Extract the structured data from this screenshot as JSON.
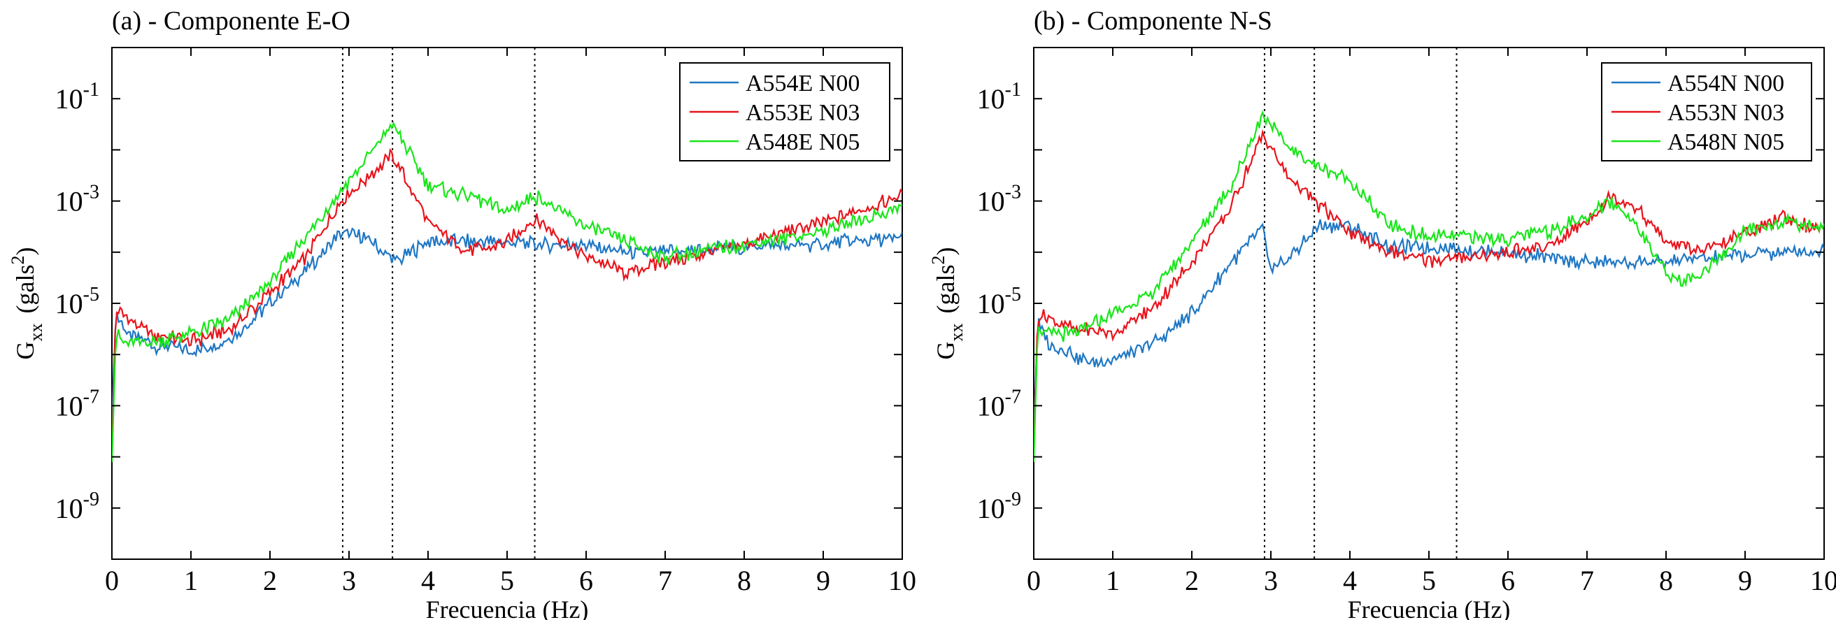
{
  "colors": {
    "series": [
      "#1f77c4",
      "#e8141c",
      "#19e619"
    ],
    "axis": "#000000",
    "refline": "#000000"
  },
  "chart_data": [
    {
      "type": "line",
      "title": "(a) - Componente E-O",
      "xlabel": "Frecuencia (Hz)",
      "ylabel_main": "G",
      "ylabel_sub": "xx",
      "ylabel_unit": "(gals",
      "ylabel_sup": "2",
      "ylabel_close": ")",
      "yscale": "log",
      "xlim": [
        0,
        10
      ],
      "ylim_exp": [
        -10,
        0
      ],
      "xticks": [
        "0",
        "1",
        "2",
        "3",
        "4",
        "5",
        "6",
        "7",
        "8",
        "9",
        "10"
      ],
      "yticks": [
        {
          "base": "10",
          "exp": "-9"
        },
        {
          "base": "10",
          "exp": "-7"
        },
        {
          "base": "10",
          "exp": "-5"
        },
        {
          "base": "10",
          "exp": "-3"
        },
        {
          "base": "10",
          "exp": "-1"
        }
      ],
      "ref_lines_hz": [
        2.92,
        3.55,
        5.35
      ],
      "legend_position": "top-right",
      "series": [
        {
          "name": "A554E N00",
          "log10_x": [
            0,
            0.05,
            0.2,
            0.5,
            1.0,
            1.5,
            2.0,
            2.5,
            2.9,
            3.2,
            3.6,
            4.0,
            4.5,
            5.0,
            5.35,
            6.0,
            6.5,
            7.0,
            8.0,
            9.0,
            10.0
          ],
          "log10_y": [
            -7.3,
            -5.2,
            -5.6,
            -5.8,
            -5.95,
            -5.7,
            -5.0,
            -4.3,
            -3.6,
            -3.7,
            -4.2,
            -3.8,
            -3.8,
            -3.8,
            -3.85,
            -3.85,
            -4.0,
            -4.0,
            -3.9,
            -3.85,
            -3.7
          ]
        },
        {
          "name": "A553E N03",
          "log10_x": [
            0,
            0.05,
            0.2,
            0.5,
            1.0,
            1.5,
            2.0,
            2.5,
            2.9,
            3.2,
            3.55,
            4.0,
            4.5,
            5.0,
            5.35,
            6.0,
            6.5,
            7.0,
            8.0,
            9.0,
            10.0
          ],
          "log10_y": [
            -7.9,
            -5.1,
            -5.3,
            -5.6,
            -5.75,
            -5.5,
            -4.8,
            -4.0,
            -3.0,
            -2.6,
            -2.1,
            -3.4,
            -4.0,
            -3.8,
            -3.35,
            -4.1,
            -4.4,
            -4.2,
            -3.85,
            -3.4,
            -2.9
          ]
        },
        {
          "name": "A548E N05",
          "log10_x": [
            0,
            0.05,
            0.2,
            0.5,
            1.0,
            1.5,
            2.0,
            2.5,
            2.9,
            3.2,
            3.55,
            4.0,
            4.5,
            5.0,
            5.35,
            6.0,
            6.5,
            7.0,
            8.0,
            9.0,
            10.0
          ],
          "log10_y": [
            -8.1,
            -5.6,
            -5.8,
            -5.75,
            -5.6,
            -5.3,
            -4.6,
            -3.6,
            -2.8,
            -2.2,
            -1.5,
            -2.7,
            -2.9,
            -3.2,
            -2.9,
            -3.5,
            -3.8,
            -4.1,
            -3.85,
            -3.6,
            -3.1
          ]
        }
      ]
    },
    {
      "type": "line",
      "title": "(b) - Componente N-S",
      "xlabel": "Frecuencia (Hz)",
      "ylabel_main": "G",
      "ylabel_sub": "xx",
      "ylabel_unit": "(gals",
      "ylabel_sup": "2",
      "ylabel_close": ")",
      "yscale": "log",
      "xlim": [
        0,
        10
      ],
      "ylim_exp": [
        -10,
        0
      ],
      "xticks": [
        "0",
        "1",
        "2",
        "3",
        "4",
        "5",
        "6",
        "7",
        "8",
        "9",
        "10"
      ],
      "yticks": [
        {
          "base": "10",
          "exp": "-9"
        },
        {
          "base": "10",
          "exp": "-7"
        },
        {
          "base": "10",
          "exp": "-5"
        },
        {
          "base": "10",
          "exp": "-3"
        },
        {
          "base": "10",
          "exp": "-1"
        }
      ],
      "ref_lines_hz": [
        2.92,
        3.55,
        5.35
      ],
      "legend_position": "top-right",
      "series": [
        {
          "name": "A554N N00",
          "log10_x": [
            0,
            0.05,
            0.2,
            0.5,
            0.75,
            1.0,
            1.5,
            2.0,
            2.5,
            2.9,
            3.0,
            3.3,
            3.6,
            4.0,
            4.5,
            5.0,
            5.5,
            6.0,
            6.5,
            7.0,
            8.0,
            9.0,
            10.0
          ],
          "log10_y": [
            -7.5,
            -5.4,
            -5.8,
            -6.0,
            -6.2,
            -6.1,
            -5.8,
            -5.2,
            -4.2,
            -3.5,
            -4.4,
            -4.0,
            -3.5,
            -3.5,
            -3.9,
            -3.9,
            -3.95,
            -4.0,
            -4.1,
            -4.2,
            -4.2,
            -4.05,
            -3.95
          ]
        },
        {
          "name": "A553N N03",
          "log10_x": [
            0,
            0.05,
            0.2,
            0.5,
            1.0,
            1.5,
            2.0,
            2.5,
            2.9,
            3.2,
            3.55,
            4.0,
            4.5,
            5.0,
            5.5,
            6.0,
            6.5,
            7.0,
            7.3,
            7.6,
            8.0,
            8.5,
            9.0,
            9.5,
            10.0
          ],
          "log10_y": [
            -7.9,
            -5.2,
            -5.3,
            -5.5,
            -5.6,
            -5.1,
            -4.2,
            -3.1,
            -1.7,
            -2.5,
            -3.0,
            -3.6,
            -4.0,
            -4.15,
            -4.1,
            -4.0,
            -3.9,
            -3.4,
            -2.9,
            -3.1,
            -3.8,
            -4.0,
            -3.6,
            -3.3,
            -3.6
          ]
        },
        {
          "name": "A548N N05",
          "log10_x": [
            0,
            0.05,
            0.2,
            0.5,
            1.0,
            1.5,
            2.0,
            2.5,
            2.9,
            3.2,
            3.55,
            4.0,
            4.5,
            5.0,
            5.5,
            6.0,
            6.5,
            7.0,
            7.3,
            7.6,
            8.0,
            8.2,
            8.5,
            9.0,
            9.5,
            10.0
          ],
          "log10_y": [
            -8.1,
            -5.5,
            -5.6,
            -5.6,
            -5.2,
            -4.8,
            -3.8,
            -2.7,
            -1.3,
            -1.9,
            -2.3,
            -2.6,
            -3.5,
            -3.7,
            -3.7,
            -3.75,
            -3.6,
            -3.3,
            -3.0,
            -3.4,
            -4.4,
            -4.6,
            -4.4,
            -3.6,
            -3.4,
            -3.5
          ]
        }
      ]
    }
  ]
}
